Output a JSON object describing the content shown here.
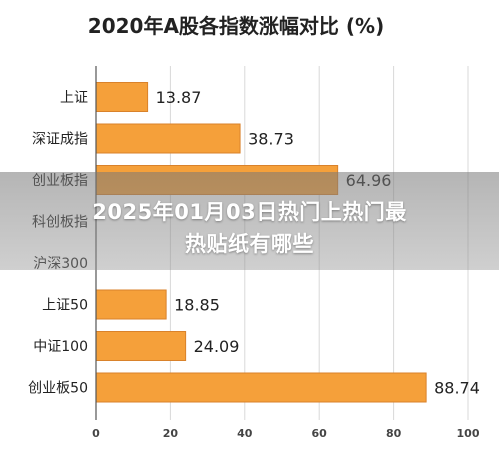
{
  "chart_data": {
    "type": "bar",
    "orientation": "horizontal",
    "title": "2020年A股各指数涨幅对比 (%)",
    "categories": [
      "上证",
      "深证成指",
      "创业板指",
      "科创板指",
      "沪深300",
      "上证50",
      "中证100",
      "创业板50"
    ],
    "values": [
      13.87,
      38.73,
      64.96,
      0,
      0,
      18.85,
      24.09,
      88.74
    ],
    "value_labels": [
      "13.87",
      "38.73",
      "64.96",
      "",
      "",
      "18.85",
      "24.09",
      "88.74"
    ],
    "xlim": [
      0,
      100
    ],
    "xticks": [
      "0",
      "20",
      "40",
      "60",
      "80",
      "100"
    ],
    "grid": true,
    "bar_color": "#F5A03A",
    "bar_stroke": "#D9822B"
  },
  "overlay": {
    "line1": "2025年01月03日热门上热门最",
    "line2": "热贴纸有哪些"
  }
}
